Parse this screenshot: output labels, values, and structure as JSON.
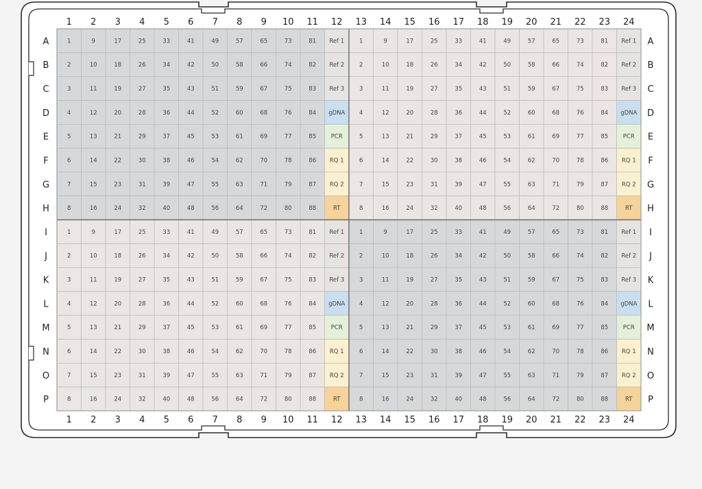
{
  "plate": {
    "columns": [
      "1",
      "2",
      "3",
      "4",
      "5",
      "6",
      "7",
      "8",
      "9",
      "10",
      "11",
      "12",
      "13",
      "14",
      "15",
      "16",
      "17",
      "18",
      "19",
      "20",
      "21",
      "22",
      "23",
      "24"
    ],
    "rows": [
      "A",
      "B",
      "C",
      "D",
      "E",
      "F",
      "G",
      "H",
      "I",
      "J",
      "K",
      "L",
      "M",
      "N",
      "O",
      "P"
    ],
    "sample_labels": [
      "1",
      "9",
      "17",
      "25",
      "33",
      "41",
      "49",
      "57",
      "65",
      "73",
      "81"
    ],
    "control_labels": [
      "Ref 1",
      "Ref 2",
      "Ref 3",
      "gDNA",
      "PCR",
      "RQ 1",
      "RQ 2",
      "RT"
    ],
    "colors": {
      "gray_quadrant": "#d7d8da",
      "beige_quadrant": "#ebe6e3",
      "ref": "#e6e3e1",
      "gDNA": "#c9dff0",
      "PCR": "#e5f0da",
      "RQ": "#fbf0cf",
      "RT": "#f6d39b",
      "grid_line": "#b9b9b9",
      "quadrant_line": "#6b6b6b",
      "frame": "#2a2a2a",
      "frame_fill": "#ffffff"
    }
  }
}
